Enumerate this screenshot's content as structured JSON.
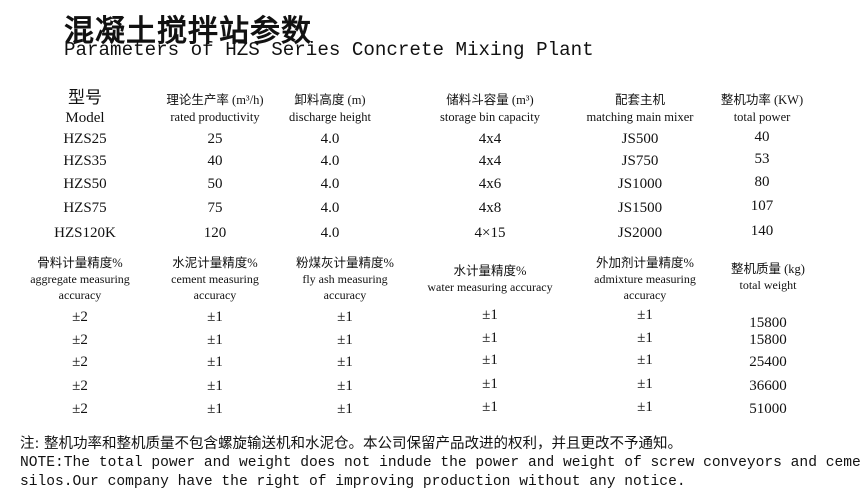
{
  "title": "混凝土搅拌站参数",
  "subtitle": "Parameters of HZS Series Concrete Mixing Plant",
  "table1": {
    "headers": [
      {
        "zh": "型号",
        "en": "Model"
      },
      {
        "zh": "理论生产率 (m³/h)",
        "en": "rated productivity"
      },
      {
        "zh": "卸料高度 (m)",
        "en": "discharge height"
      },
      {
        "zh": "储料斗容量 (m³)",
        "en": "storage bin capacity"
      },
      {
        "zh": "配套主机",
        "en": "matching main mixer"
      },
      {
        "zh": "整机功率 (KW)",
        "en": "total power"
      }
    ],
    "rows": [
      [
        "HZS25",
        "25",
        "4.0",
        "4x4",
        "JS500",
        "40"
      ],
      [
        "HZS35",
        "40",
        "4.0",
        "4x4",
        "JS750",
        "53"
      ],
      [
        "HZS50",
        "50",
        "4.0",
        "4x6",
        "JS1000",
        "80"
      ],
      [
        "HZS75",
        "75",
        "4.0",
        "4x8",
        "JS1500",
        "107"
      ],
      [
        "HZS120K",
        "120",
        "4.0",
        "4×15",
        "JS2000",
        "140"
      ]
    ]
  },
  "table2": {
    "headers": [
      {
        "zh": "骨料计量精度%",
        "en": "aggregate measuring",
        "en2": "accuracy"
      },
      {
        "zh": "水泥计量精度%",
        "en": "cement measuring",
        "en2": "accuracy"
      },
      {
        "zh": "粉煤灰计量精度%",
        "en": "fly ash measuring",
        "en2": "accuracy"
      },
      {
        "zh": "水计量精度%",
        "en": "water measuring accuracy",
        "en2": ""
      },
      {
        "zh": "外加剂计量精度%",
        "en": "admixture measuring",
        "en2": "accuracy"
      },
      {
        "zh": "整机质量 (kg)",
        "en": "total weight",
        "en2": ""
      }
    ],
    "rows": [
      [
        "±2",
        "±1",
        "±1",
        "±1",
        "±1",
        "15800"
      ],
      [
        "±2",
        "±1",
        "±1",
        "±1",
        "±1",
        "15800"
      ],
      [
        "±2",
        "±1",
        "±1",
        "±1",
        "±1",
        "25400"
      ],
      [
        "±2",
        "±1",
        "±1",
        "±1",
        "±1",
        "36600"
      ],
      [
        "±2",
        "±1",
        "±1",
        "±1",
        "±1",
        "51000"
      ]
    ]
  },
  "notes": {
    "zh": "注: 整机功率和整机质量不包含螺旋输送机和水泥仓。本公司保留产品改进的权利，并且更改不予通知。",
    "en1": "NOTE:The total power and weight does not indude the power and weight of screw conveyors and cement",
    "en2": "silos.Our company have the right of improving production without any notice."
  }
}
